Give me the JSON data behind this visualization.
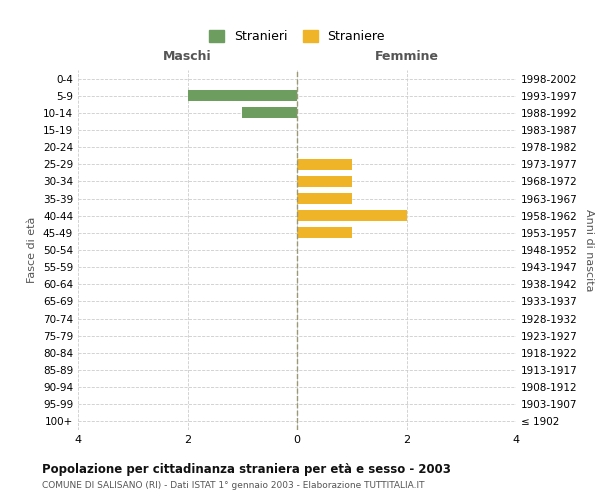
{
  "age_groups": [
    "0-4",
    "5-9",
    "10-14",
    "15-19",
    "20-24",
    "25-29",
    "30-34",
    "35-39",
    "40-44",
    "45-49",
    "50-54",
    "55-59",
    "60-64",
    "65-69",
    "70-74",
    "75-79",
    "80-84",
    "85-89",
    "90-94",
    "95-99",
    "100+"
  ],
  "birth_years": [
    "1998-2002",
    "1993-1997",
    "1988-1992",
    "1983-1987",
    "1978-1982",
    "1973-1977",
    "1968-1972",
    "1963-1967",
    "1958-1962",
    "1953-1957",
    "1948-1952",
    "1943-1947",
    "1938-1942",
    "1933-1937",
    "1928-1932",
    "1923-1927",
    "1918-1922",
    "1913-1917",
    "1908-1912",
    "1903-1907",
    "≤ 1902"
  ],
  "maschi": [
    0,
    2,
    1,
    0,
    0,
    0,
    0,
    0,
    0,
    0,
    0,
    0,
    0,
    0,
    0,
    0,
    0,
    0,
    0,
    0,
    0
  ],
  "femmine": [
    0,
    0,
    0,
    0,
    0,
    1,
    1,
    1,
    2,
    1,
    0,
    0,
    0,
    0,
    0,
    0,
    0,
    0,
    0,
    0,
    0
  ],
  "color_maschi": "#6e9e5f",
  "color_femmine": "#f0b429",
  "xlim": 4,
  "title": "Popolazione per cittadinanza straniera per età e sesso - 2003",
  "subtitle": "COMUNE DI SALISANO (RI) - Dati ISTAT 1° gennaio 2003 - Elaborazione TUTTITALIA.IT",
  "ylabel_left": "Fasce di età",
  "ylabel_right": "Anni di nascita",
  "header_left": "Maschi",
  "header_right": "Femmine",
  "legend_maschi": "Stranieri",
  "legend_femmine": "Straniere",
  "bg_color": "#ffffff",
  "grid_color": "#cccccc",
  "axis_line_color": "#999977"
}
